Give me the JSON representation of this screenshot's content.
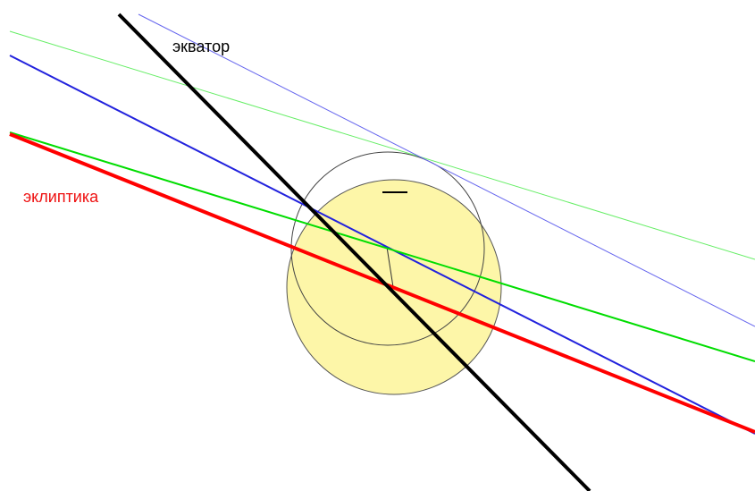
{
  "labels": {
    "equator": "экватор",
    "ecliptic": "эклиптика"
  },
  "colors": {
    "background": "#ffffff",
    "equator": "#000000",
    "ecliptic": "#ff0000",
    "green": "#00dd00",
    "green_light": "#66ee66",
    "blue": "#2222dd",
    "blue_light": "#6666ee",
    "disk_fill": "#fdf6a8",
    "disk_stroke": "#555555",
    "circle_stroke": "#444444",
    "label_equator": "#000000",
    "label_ecliptic": "#ee1111"
  }
}
